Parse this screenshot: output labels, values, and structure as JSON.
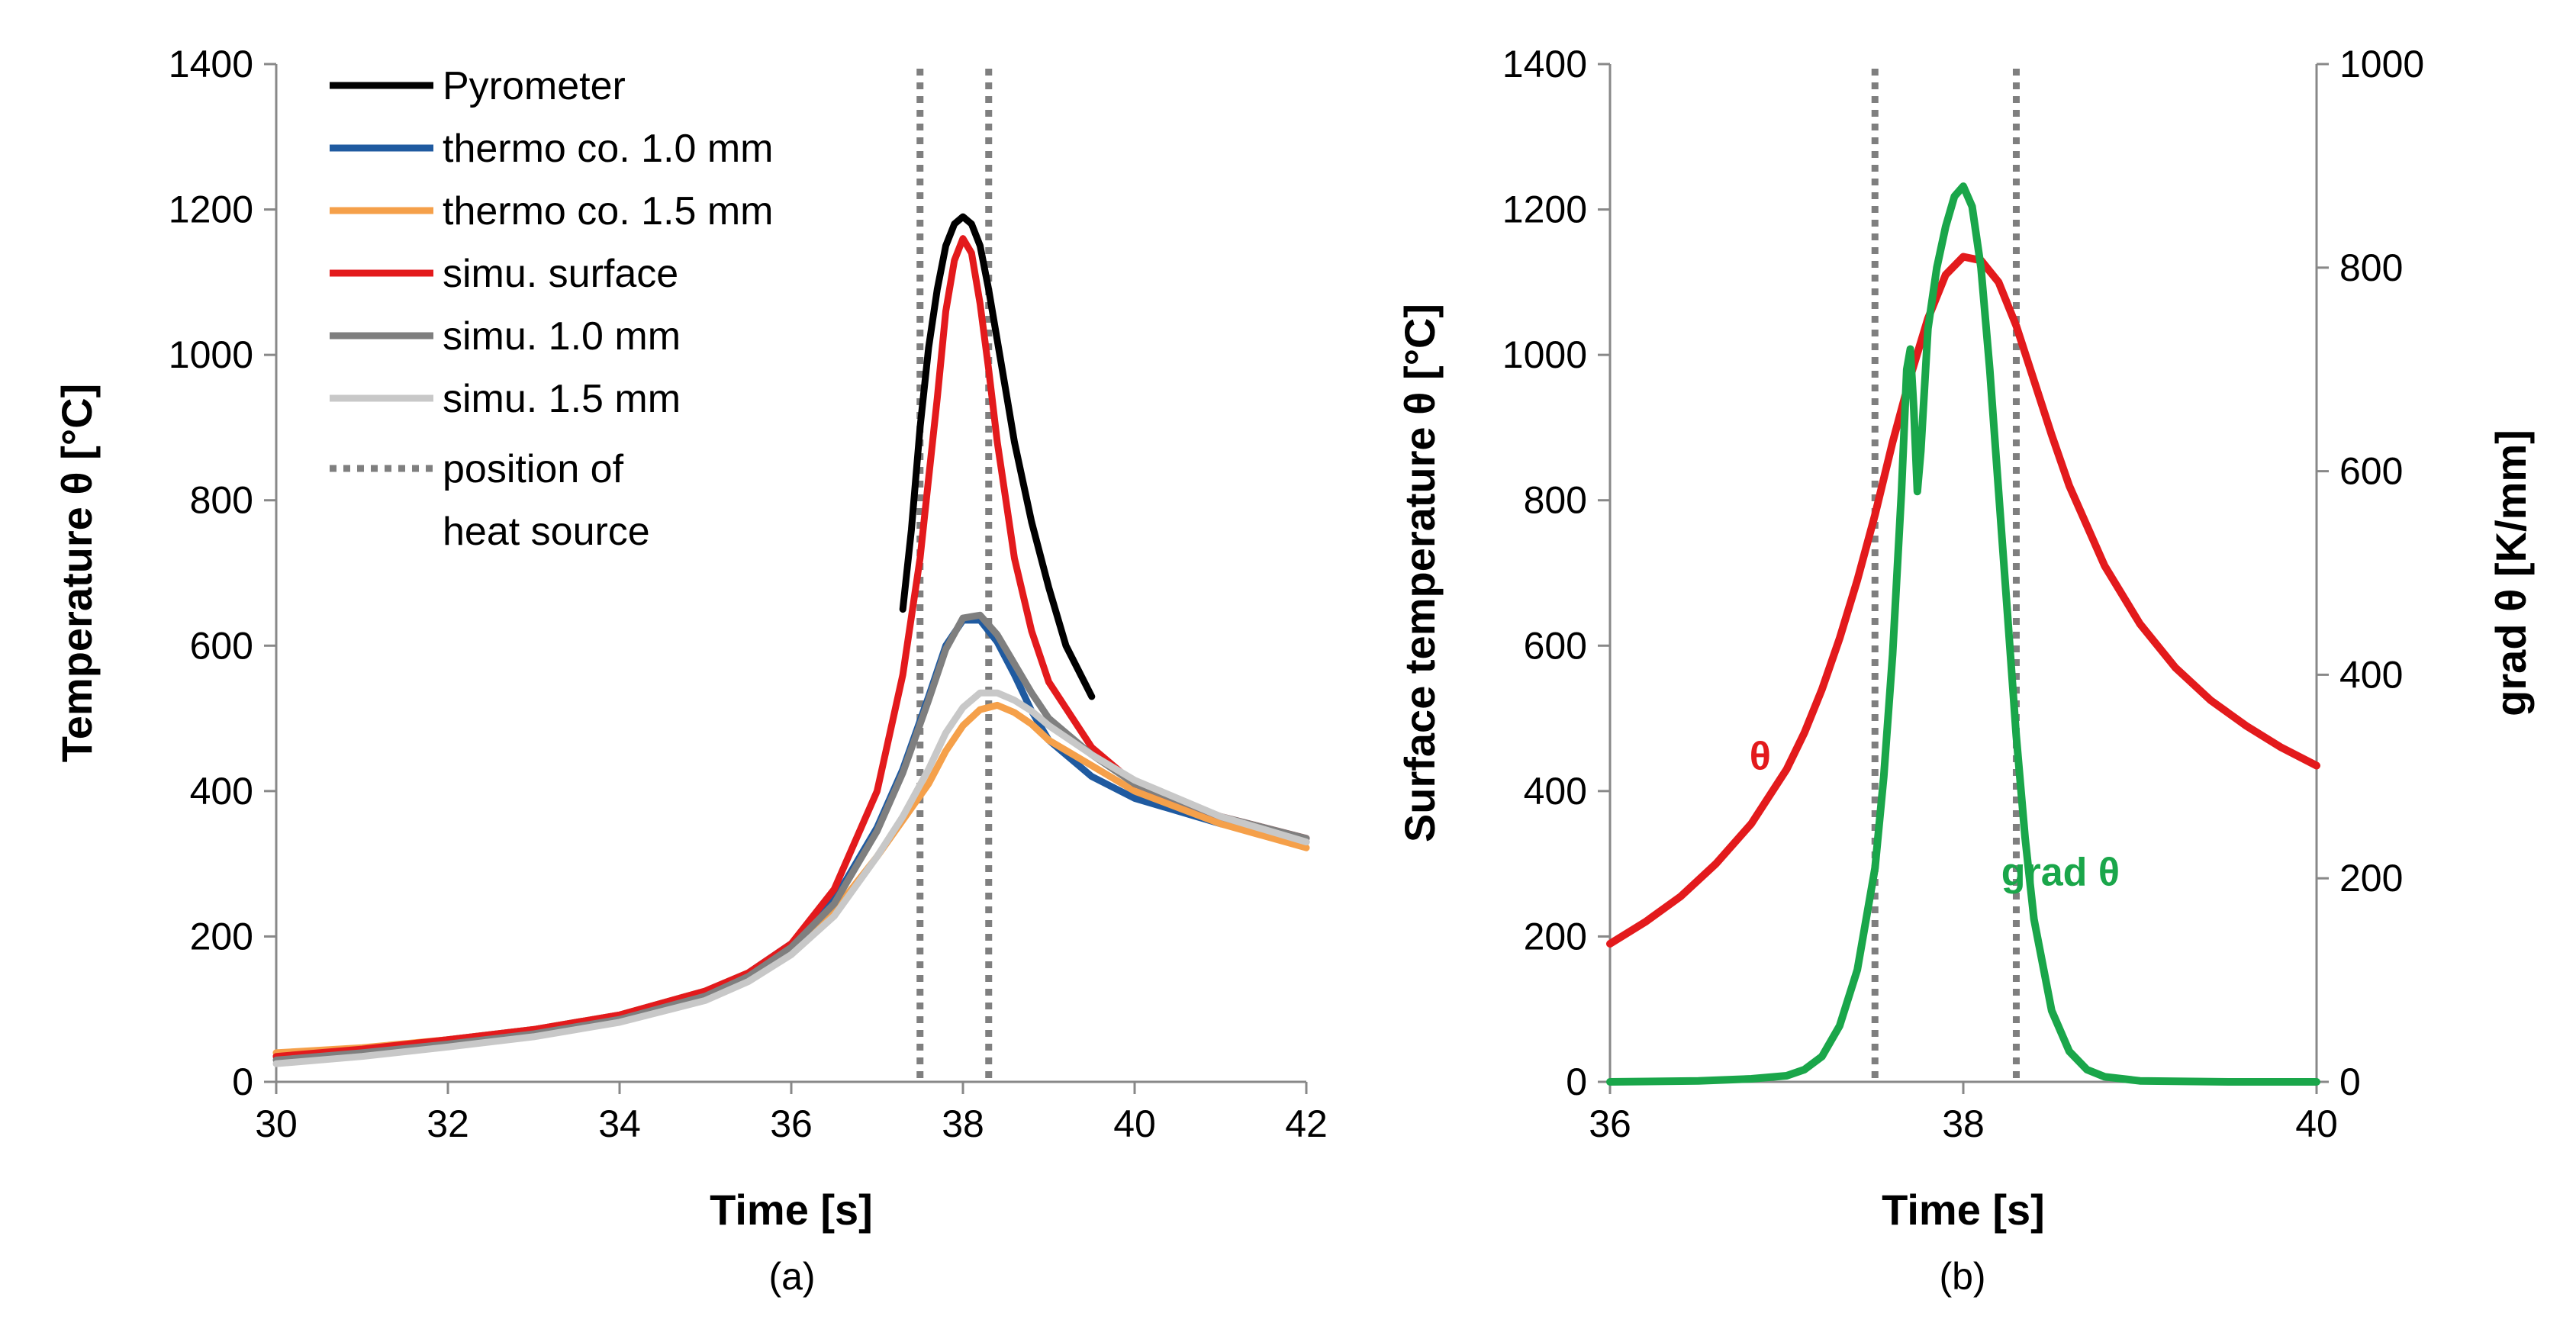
{
  "chart_data": [
    {
      "id": "a",
      "type": "line",
      "caption": "(a)",
      "xlabel": "Time [s]",
      "ylabel": "Temperature θ [°C]",
      "xlim": [
        30,
        42
      ],
      "ylim": [
        0,
        1400
      ],
      "xticks": [
        30,
        32,
        34,
        36,
        38,
        40,
        42
      ],
      "yticks": [
        0,
        200,
        400,
        600,
        800,
        1000,
        1200,
        1400
      ],
      "grid": false,
      "legend_position": "top-left",
      "legend": [
        "Pyrometer",
        "thermo co. 1.0 mm",
        "thermo co. 1.5 mm",
        "simu. surface",
        "simu. 1.0 mm",
        "simu. 1.5 mm",
        "position of",
        "heat source"
      ],
      "vlines": [
        37.5,
        38.3
      ],
      "series": [
        {
          "name": "Pyrometer",
          "color": "#000000",
          "x": [
            37.3,
            37.4,
            37.5,
            37.6,
            37.7,
            37.8,
            37.9,
            38.0,
            38.1,
            38.2,
            38.3,
            38.4,
            38.5,
            38.6,
            38.8,
            39.0,
            39.2,
            39.5
          ],
          "y": [
            650,
            760,
            900,
            1010,
            1090,
            1150,
            1180,
            1190,
            1180,
            1150,
            1090,
            1020,
            950,
            880,
            770,
            680,
            600,
            530
          ]
        },
        {
          "name": "thermo co. 1.0 mm",
          "color": "#1f5aa0",
          "x": [
            30,
            31,
            32,
            33,
            34,
            35,
            35.5,
            36,
            36.5,
            37,
            37.3,
            37.6,
            37.8,
            38.0,
            38.2,
            38.4,
            38.6,
            38.8,
            39.0,
            39.5,
            40,
            41,
            42
          ],
          "y": [
            35,
            45,
            58,
            72,
            92,
            125,
            150,
            190,
            250,
            350,
            430,
            530,
            600,
            635,
            635,
            605,
            560,
            510,
            470,
            420,
            390,
            355,
            330
          ]
        },
        {
          "name": "thermo co. 1.5 mm",
          "color": "#f5a04a",
          "x": [
            30,
            31,
            32,
            33,
            34,
            35,
            35.5,
            36,
            36.5,
            37,
            37.3,
            37.6,
            37.8,
            38.0,
            38.2,
            38.4,
            38.6,
            38.8,
            39.0,
            39.5,
            40,
            41,
            42
          ],
          "y": [
            40,
            47,
            58,
            72,
            92,
            125,
            150,
            185,
            235,
            310,
            360,
            410,
            455,
            490,
            512,
            518,
            508,
            492,
            470,
            435,
            400,
            355,
            322
          ]
        },
        {
          "name": "simu. surface",
          "color": "#e31a1c",
          "x": [
            30,
            31,
            32,
            33,
            34,
            35,
            35.5,
            36,
            36.5,
            37,
            37.3,
            37.5,
            37.6,
            37.7,
            37.8,
            37.9,
            38.0,
            38.1,
            38.2,
            38.3,
            38.4,
            38.5,
            38.6,
            38.8,
            39.0,
            39.5,
            40,
            41,
            42
          ],
          "y": [
            35,
            45,
            58,
            72,
            92,
            125,
            150,
            190,
            265,
            400,
            560,
            720,
            830,
            940,
            1060,
            1130,
            1160,
            1140,
            1070,
            980,
            880,
            800,
            720,
            620,
            550,
            460,
            410,
            365,
            335
          ]
        },
        {
          "name": "simu. 1.0 mm",
          "color": "#7f7f7f",
          "x": [
            30,
            31,
            32,
            33,
            34,
            35,
            35.5,
            36,
            36.5,
            37,
            37.3,
            37.6,
            37.8,
            38.0,
            38.2,
            38.4,
            38.6,
            38.8,
            39.0,
            39.5,
            40,
            41,
            42
          ],
          "y": [
            30,
            40,
            52,
            66,
            86,
            118,
            145,
            185,
            245,
            345,
            425,
            525,
            595,
            638,
            642,
            615,
            575,
            535,
            500,
            450,
            410,
            365,
            335
          ]
        },
        {
          "name": "simu. 1.5 mm",
          "color": "#c8c8c8",
          "x": [
            30,
            31,
            32,
            33,
            34,
            35,
            35.5,
            36,
            36.5,
            37,
            37.3,
            37.6,
            37.8,
            38.0,
            38.2,
            38.4,
            38.6,
            38.8,
            39.0,
            39.5,
            40,
            41,
            42
          ],
          "y": [
            25,
            35,
            48,
            62,
            82,
            112,
            138,
            175,
            228,
            310,
            365,
            430,
            480,
            515,
            535,
            535,
            525,
            510,
            490,
            450,
            415,
            365,
            330
          ]
        }
      ]
    },
    {
      "id": "b",
      "type": "line",
      "caption": "(b)",
      "xlabel": "Time [s]",
      "ylabel": "Surface temperature θ [°C]",
      "ylabel_right": "grad θ [K/mm]",
      "xlim": [
        36,
        40
      ],
      "ylim": [
        0,
        1400
      ],
      "ylim_right": [
        0,
        1000
      ],
      "xticks": [
        36,
        38,
        40
      ],
      "yticks": [
        0,
        200,
        400,
        600,
        800,
        1000,
        1200,
        1400
      ],
      "yticks_right": [
        0,
        200,
        400,
        600,
        800,
        1000
      ],
      "grid": false,
      "vlines": [
        37.5,
        38.3
      ],
      "annotations": [
        {
          "text": "θ",
          "color": "#e31a1c",
          "x": 36.85,
          "y": 430
        },
        {
          "text": "grad θ",
          "color": "#1aa64a",
          "x": 38.55,
          "y": 270
        }
      ],
      "series": [
        {
          "name": "θ",
          "axis": "left",
          "color": "#e31a1c",
          "x": [
            36.0,
            36.2,
            36.4,
            36.6,
            36.8,
            37.0,
            37.1,
            37.2,
            37.3,
            37.4,
            37.5,
            37.6,
            37.7,
            37.8,
            37.9,
            38.0,
            38.1,
            38.2,
            38.3,
            38.4,
            38.5,
            38.6,
            38.8,
            39.0,
            39.2,
            39.4,
            39.6,
            39.8,
            40.0
          ],
          "y": [
            190,
            220,
            255,
            300,
            355,
            430,
            480,
            540,
            610,
            690,
            780,
            880,
            970,
            1050,
            1110,
            1135,
            1130,
            1100,
            1040,
            965,
            890,
            820,
            710,
            630,
            570,
            525,
            490,
            460,
            435
          ]
        },
        {
          "name": "grad θ",
          "axis": "right",
          "color": "#1aa64a",
          "x": [
            36.0,
            36.5,
            36.8,
            37.0,
            37.1,
            37.2,
            37.3,
            37.4,
            37.5,
            37.55,
            37.6,
            37.65,
            37.68,
            37.7,
            37.72,
            37.74,
            37.76,
            37.8,
            37.85,
            37.9,
            37.95,
            38.0,
            38.05,
            38.1,
            38.15,
            38.2,
            38.25,
            38.3,
            38.35,
            38.4,
            38.5,
            38.6,
            38.7,
            38.8,
            39.0,
            39.5,
            40.0
          ],
          "y": [
            0,
            1,
            3,
            6,
            12,
            25,
            55,
            110,
            210,
            300,
            420,
            580,
            700,
            720,
            660,
            580,
            620,
            740,
            800,
            840,
            870,
            880,
            860,
            800,
            700,
            580,
            460,
            340,
            240,
            160,
            70,
            30,
            12,
            5,
            1,
            0,
            0
          ]
        }
      ]
    }
  ]
}
